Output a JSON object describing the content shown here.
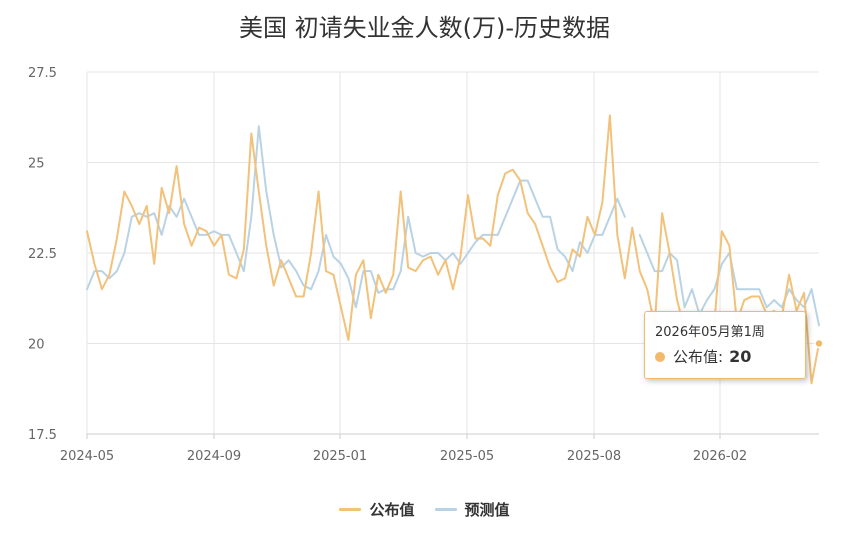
{
  "chart_data": {
    "type": "line",
    "title": "美国 初请失业金人数(万)-历史数据",
    "ylim": [
      17.5,
      27.5
    ],
    "y_ticks": [
      "27.5",
      "25",
      "22.5",
      "20",
      "17.5"
    ],
    "x_ticks": [
      "2024-05",
      "2024-09",
      "2025-01",
      "2025-05",
      "2025-08",
      "2026-02"
    ],
    "grid": true,
    "legend_position": "bottom",
    "series": [
      {
        "name": "公布值",
        "color": "#f2c17a",
        "values": [
          23.1,
          22.2,
          21.5,
          21.9,
          22.9,
          24.2,
          23.8,
          23.3,
          23.8,
          22.2,
          24.3,
          23.6,
          24.9,
          23.3,
          22.7,
          23.2,
          23.1,
          22.7,
          23.0,
          21.9,
          21.8,
          22.6,
          25.8,
          24.2,
          22.7,
          21.6,
          22.3,
          21.8,
          21.3,
          21.3,
          22.5,
          24.2,
          22.0,
          21.9,
          21.0,
          20.1,
          21.9,
          22.3,
          20.7,
          21.9,
          21.4,
          21.9,
          24.2,
          22.1,
          22.0,
          22.3,
          22.4,
          21.9,
          22.3,
          21.5,
          22.4,
          24.1,
          22.9,
          22.9,
          22.7,
          24.1,
          24.7,
          24.8,
          24.5,
          23.6,
          23.3,
          22.7,
          22.1,
          21.7,
          21.8,
          22.6,
          22.4,
          23.5,
          23.0,
          23.9,
          26.3,
          23.0,
          21.8,
          23.2,
          22.0,
          21.5,
          20.5,
          23.6,
          22.5,
          21.2,
          20.4,
          20.2,
          20.0,
          20.4,
          20.6,
          23.1,
          22.7,
          20.6,
          21.2,
          21.3,
          21.3,
          20.8,
          20.9,
          20.7,
          21.9,
          20.9,
          21.4,
          18.9,
          20.0
        ]
      },
      {
        "name": "预测值",
        "color": "#b9d3e4",
        "values": [
          21.5,
          22.0,
          22.0,
          21.8,
          22.0,
          22.5,
          23.5,
          23.6,
          23.5,
          23.6,
          23.0,
          23.8,
          23.5,
          24.0,
          23.5,
          23.0,
          23.0,
          23.1,
          23.0,
          23.0,
          22.5,
          22.0,
          23.5,
          26.0,
          24.2,
          23.0,
          22.1,
          22.3,
          22.0,
          21.6,
          21.5,
          22.0,
          23.0,
          22.4,
          22.2,
          21.8,
          21.0,
          22.0,
          22.0,
          21.4,
          21.5,
          21.5,
          22.0,
          23.5,
          22.5,
          22.4,
          22.5,
          22.5,
          22.3,
          22.5,
          22.2,
          22.5,
          22.8,
          23.0,
          23.0,
          23.0,
          23.5,
          24.0,
          24.5,
          24.5,
          24.0,
          23.5,
          23.5,
          22.6,
          22.4,
          22.0,
          22.8,
          22.5,
          23.0,
          23.0,
          23.5,
          24.0,
          23.5,
          null,
          23.0,
          22.5,
          22.0,
          22.0,
          22.5,
          22.3,
          21.0,
          21.5,
          20.8,
          21.2,
          21.5,
          22.2,
          22.5,
          21.5,
          21.5,
          21.5,
          21.5,
          21.0,
          21.2,
          21.0,
          21.5,
          21.2,
          21.0,
          21.5,
          20.5
        ]
      }
    ]
  },
  "tooltip": {
    "date": "2026年05月第1周",
    "series_name": "公布值:",
    "value": "20",
    "dot_color": "#f2b96b"
  }
}
